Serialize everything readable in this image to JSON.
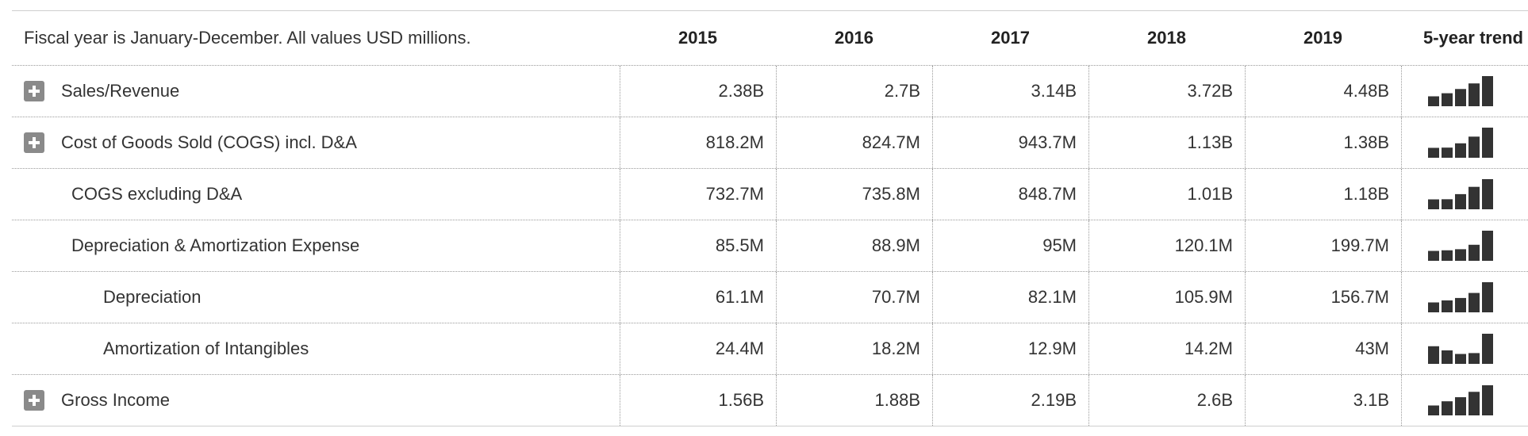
{
  "header": {
    "note": "Fiscal year is January-December. All values USD millions.",
    "years": [
      "2015",
      "2016",
      "2017",
      "2018",
      "2019"
    ],
    "trend_label": "5-year trend"
  },
  "rows": [
    {
      "label": "Sales/Revenue",
      "expandable": true,
      "indent": 0,
      "values": [
        "2.38B",
        "2.7B",
        "3.14B",
        "3.72B",
        "4.48B"
      ],
      "trend": [
        2.38,
        2.7,
        3.14,
        3.72,
        4.48
      ]
    },
    {
      "label": "Cost of Goods Sold (COGS) incl. D&A",
      "expandable": true,
      "indent": 0,
      "values": [
        "818.2M",
        "824.7M",
        "943.7M",
        "1.13B",
        "1.38B"
      ],
      "trend": [
        818.2,
        824.7,
        943.7,
        1130,
        1380
      ]
    },
    {
      "label": "COGS excluding D&A",
      "expandable": false,
      "indent": 1,
      "values": [
        "732.7M",
        "735.8M",
        "848.7M",
        "1.01B",
        "1.18B"
      ],
      "trend": [
        732.7,
        735.8,
        848.7,
        1010,
        1180
      ]
    },
    {
      "label": "Depreciation & Amortization Expense",
      "expandable": false,
      "indent": 1,
      "values": [
        "85.5M",
        "88.9M",
        "95M",
        "120.1M",
        "199.7M"
      ],
      "trend": [
        85.5,
        88.9,
        95,
        120.1,
        199.7
      ]
    },
    {
      "label": "Depreciation",
      "expandable": false,
      "indent": 2,
      "values": [
        "61.1M",
        "70.7M",
        "82.1M",
        "105.9M",
        "156.7M"
      ],
      "trend": [
        61.1,
        70.7,
        82.1,
        105.9,
        156.7
      ]
    },
    {
      "label": "Amortization of Intangibles",
      "expandable": false,
      "indent": 2,
      "values": [
        "24.4M",
        "18.2M",
        "12.9M",
        "14.2M",
        "43M"
      ],
      "trend": [
        24.4,
        18.2,
        12.9,
        14.2,
        43
      ]
    },
    {
      "label": "Gross Income",
      "expandable": true,
      "indent": 0,
      "values": [
        "1.56B",
        "1.88B",
        "2.19B",
        "2.6B",
        "3.1B"
      ],
      "trend": [
        1.56,
        1.88,
        2.19,
        2.6,
        3.1
      ]
    }
  ],
  "colors": {
    "text": "#333333",
    "bar": "#333333",
    "expand_icon": "#8a8a8a"
  },
  "icons": {
    "expand": "plus-square-icon"
  }
}
